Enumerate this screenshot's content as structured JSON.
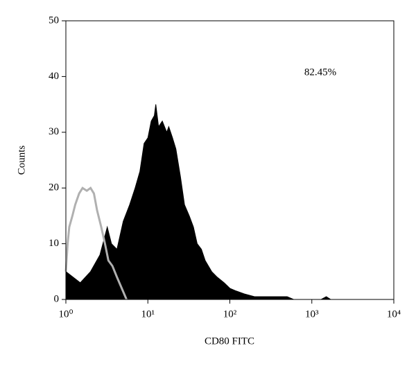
{
  "chart_data": {
    "type": "histogram-overlay",
    "xlabel": "CD80 FITC",
    "ylabel": "Counts",
    "annotation": "82.45%",
    "xscale": "log",
    "xlim": [
      1,
      10000
    ],
    "xticks": [
      {
        "value": 1,
        "label": "10⁰"
      },
      {
        "value": 10,
        "label": "10¹"
      },
      {
        "value": 100,
        "label": "10²"
      },
      {
        "value": 1000,
        "label": "10³"
      },
      {
        "value": 10000,
        "label": "10⁴"
      }
    ],
    "ylim": [
      0,
      50
    ],
    "yticks": [
      0,
      10,
      20,
      30,
      40,
      50
    ],
    "series": [
      {
        "color": "#000000",
        "fill": true,
        "x": [
          1,
          1.5,
          2,
          2.6,
          3.2,
          3.6,
          4.2,
          5,
          6,
          7,
          8,
          9,
          10,
          11,
          12,
          12.5,
          13.5,
          15,
          17,
          18,
          20,
          22,
          25,
          28,
          32,
          36,
          40,
          45,
          50,
          60,
          70,
          85,
          100,
          120,
          150,
          200,
          300,
          400,
          500,
          600,
          800,
          1000,
          1300,
          1500,
          1700,
          2500,
          10000
        ],
        "values": [
          5,
          3,
          5,
          8,
          13,
          10,
          9,
          14,
          17,
          20,
          23,
          28,
          29,
          32,
          33,
          35,
          31,
          32,
          30,
          31,
          29,
          27,
          22,
          17,
          15,
          13,
          10,
          9,
          7,
          5,
          4,
          3,
          2,
          1.5,
          1,
          0.5,
          0.5,
          0.5,
          0.5,
          0,
          0,
          0,
          0,
          0.5,
          0,
          0,
          0
        ]
      },
      {
        "color": "#b0b0b0",
        "fill": false,
        "x": [
          1,
          1.05,
          1.1,
          1.2,
          1.3,
          1.45,
          1.6,
          1.8,
          2,
          2.2,
          2.4,
          2.7,
          3,
          3.3,
          3.7,
          4.2,
          4.8,
          5.5
        ],
        "values": [
          5,
          10,
          13,
          15,
          17,
          19,
          20,
          19.5,
          20,
          19,
          16,
          13,
          10,
          7,
          6,
          4,
          2,
          0
        ]
      }
    ]
  }
}
